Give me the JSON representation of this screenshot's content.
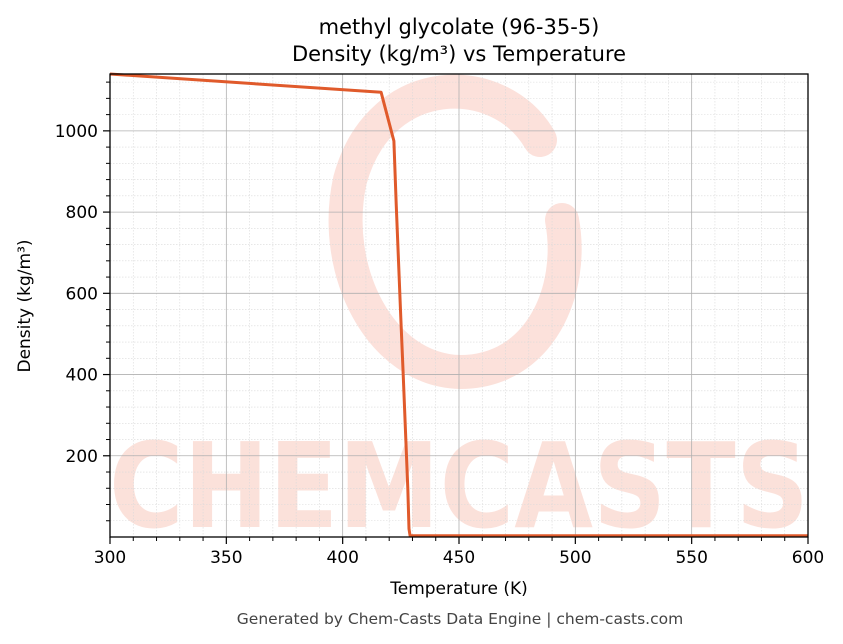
{
  "chart_data": {
    "type": "line",
    "title_line1": "methyl glycolate (96-35-5)",
    "title_line2": "Density (kg/m³) vs Temperature",
    "xlabel": "Temperature (K)",
    "ylabel": "Density (kg/m³)",
    "xlim": [
      300,
      600
    ],
    "ylim": [
      0,
      1140
    ],
    "x_ticks": [
      300,
      350,
      400,
      450,
      500,
      550,
      600
    ],
    "y_ticks": [
      200,
      400,
      600,
      800,
      1000
    ],
    "grid": true,
    "series": [
      {
        "color": "#e05a2b",
        "x": [
          300,
          416.5,
          422,
          423,
          424,
          425,
          426,
          427,
          428,
          428.5,
          429,
          450,
          500,
          550,
          600
        ],
        "y": [
          1140,
          1095,
          975,
          820,
          680,
          540,
          400,
          260,
          120,
          20,
          3,
          3,
          3,
          3,
          3
        ]
      }
    ]
  },
  "watermark": {
    "text": "CHEMCASTS",
    "color": "#f9c9bd"
  },
  "footer": "Generated by Chem-Casts Data Engine | chem-casts.com"
}
